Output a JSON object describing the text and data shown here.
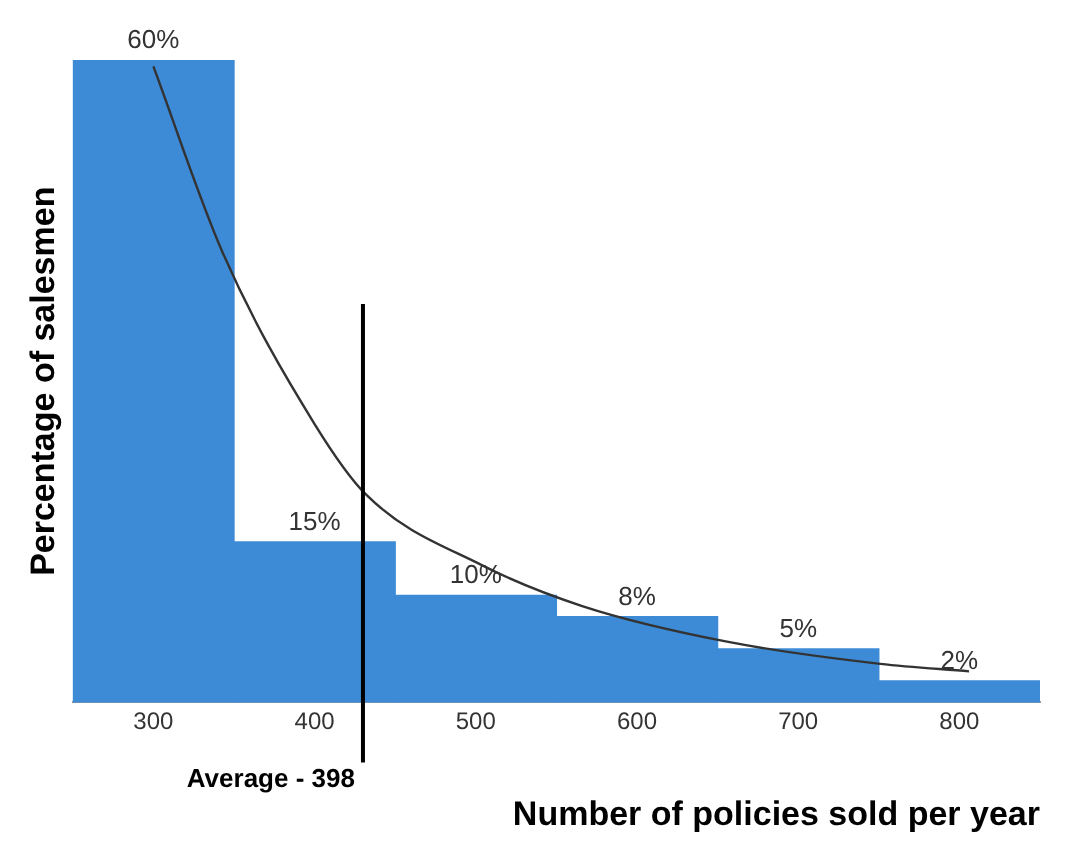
{
  "chart_data": {
    "type": "histogram",
    "bins": [
      250,
      350,
      450,
      550,
      650,
      750,
      850
    ],
    "values": [
      60,
      15,
      10,
      8,
      5,
      2
    ],
    "value_labels": [
      "60%",
      "15%",
      "10%",
      "8%",
      "5%",
      "2%"
    ],
    "color": "#3d8bd6",
    "series": [
      {
        "type": "line",
        "color": "#333333",
        "x": [
          300,
          343,
          400,
          432,
          504,
          566,
          655,
          751,
          806
        ],
        "values": [
          59.4,
          42,
          26,
          19.4,
          12.8,
          9,
          5.7,
          3.6,
          2.9
        ]
      }
    ],
    "xlim": [
      250,
      850
    ],
    "xticks": [
      300,
      400,
      500,
      600,
      700,
      800
    ],
    "xlabel": "Number of policies sold per year",
    "ylabel": "Percentage of salesmen",
    "ref_lines": [
      {
        "axis": "x",
        "value": 430,
        "label": "Average - 398",
        "color": "#000000"
      }
    ],
    "grid": false,
    "legend": false
  }
}
